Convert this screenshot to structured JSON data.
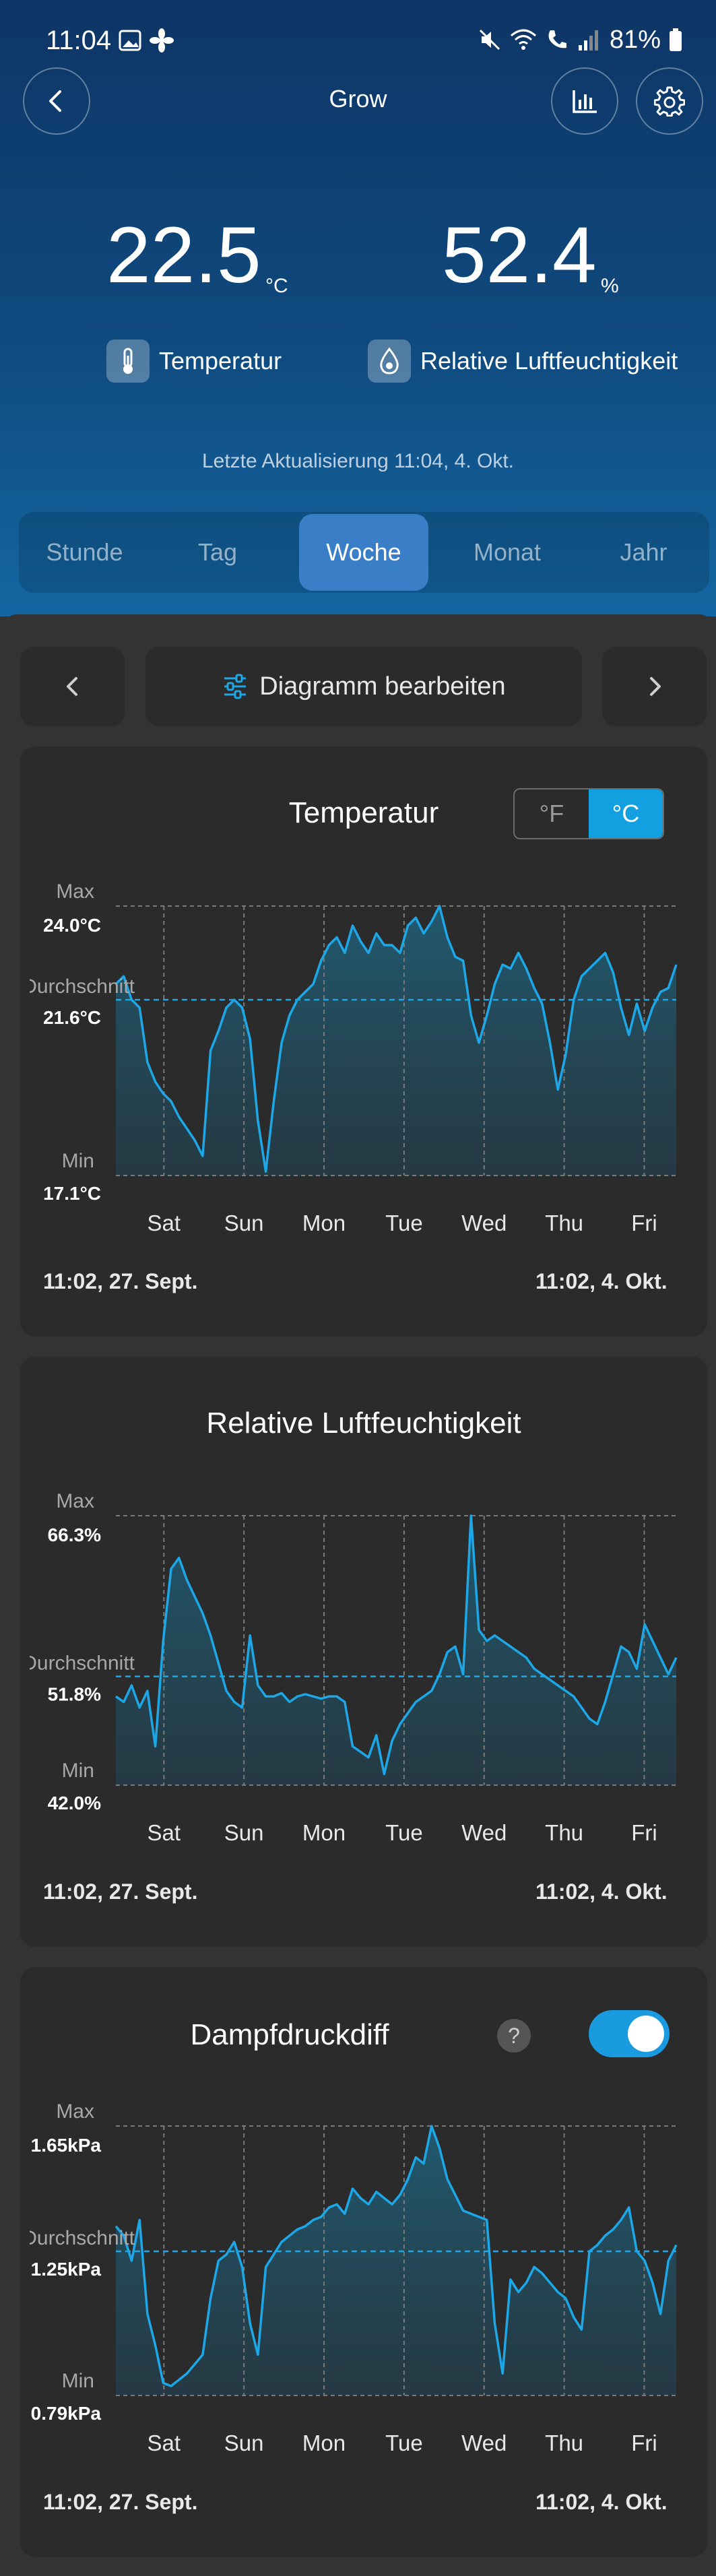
{
  "status": {
    "time": "11:04",
    "battery": "81%"
  },
  "header": {
    "title": "Grow"
  },
  "readings": {
    "temperature": {
      "value": "22.5",
      "unit": "°C",
      "label": "Temperatur"
    },
    "humidity": {
      "value": "52.4",
      "unit": "%",
      "label": "Relative Luftfeuchtigkeit"
    }
  },
  "last_update": "Letzte Aktualisierung 11:04,  4. Okt.",
  "tabs": [
    {
      "label": "Stunde",
      "active": false
    },
    {
      "label": "Tag",
      "active": false
    },
    {
      "label": "Woche",
      "active": true
    },
    {
      "label": "Monat",
      "active": false
    },
    {
      "label": "Jahr",
      "active": false
    }
  ],
  "toolbar": {
    "edit_label": "Diagramm bearbeiten"
  },
  "colors": {
    "accent": "#13a0e0",
    "header_top": "#0e3566",
    "card": "#2b2b2b",
    "line": "#1ea7e6"
  },
  "chart_data": [
    {
      "type": "line",
      "title": "Temperatur",
      "unit_toggle": {
        "fahrenheit": "°F",
        "celsius": "°C",
        "selected": "°C"
      },
      "stat_labels": {
        "max": "Max",
        "avg": "Durchschnitt",
        "min": "Min"
      },
      "max_label": "24.0°C",
      "avg_label": "21.6°C",
      "min_label": "17.1°C",
      "ylim": [
        17.1,
        24.0
      ],
      "average": 21.6,
      "x_ticks": [
        "Sat",
        "Sun",
        "Mon",
        "Tue",
        "Wed",
        "Thu",
        "Fri"
      ],
      "start_label": "11:02,  27. Sept.",
      "end_label": "11:02,  4. Okt.",
      "series": [
        {
          "values": [
            22.0,
            22.2,
            21.6,
            21.4,
            20.0,
            19.5,
            19.2,
            19.0,
            18.6,
            18.3,
            18.0,
            17.6,
            20.3,
            20.8,
            21.4,
            21.6,
            21.4,
            20.6,
            18.5,
            17.2,
            19.0,
            20.5,
            21.2,
            21.6,
            21.8,
            22.0,
            22.6,
            23.0,
            23.2,
            22.8,
            23.5,
            23.1,
            22.8,
            23.3,
            23.0,
            23.0,
            22.8,
            23.5,
            23.7,
            23.3,
            23.6,
            24.0,
            23.2,
            22.7,
            22.6,
            21.2,
            20.5,
            21.2,
            22.0,
            22.5,
            22.4,
            22.8,
            22.4,
            21.9,
            21.5,
            20.5,
            19.3,
            20.2,
            21.6,
            22.2,
            22.4,
            22.6,
            22.8,
            22.3,
            21.4,
            20.7,
            21.5,
            20.8,
            21.4,
            21.8,
            21.9,
            22.5
          ]
        }
      ]
    },
    {
      "type": "line",
      "title": "Relative Luftfeuchtigkeit",
      "stat_labels": {
        "max": "Max",
        "avg": "Durchschnitt",
        "min": "Min"
      },
      "max_label": "66.3%",
      "avg_label": "51.8%",
      "min_label": "42.0%",
      "ylim": [
        42.0,
        66.3
      ],
      "average": 51.8,
      "x_ticks": [
        "Sat",
        "Sun",
        "Mon",
        "Tue",
        "Wed",
        "Thu",
        "Fri"
      ],
      "start_label": "11:02,  27. Sept.",
      "end_label": "11:02,  4. Okt.",
      "series": [
        {
          "values": [
            50.0,
            49.5,
            51.0,
            49.0,
            50.5,
            45.5,
            55.0,
            61.5,
            62.5,
            60.5,
            59.0,
            57.5,
            55.5,
            53.0,
            50.5,
            49.5,
            49.0,
            55.5,
            51.0,
            50.0,
            50.0,
            50.3,
            49.5,
            50.0,
            50.2,
            50.0,
            49.8,
            50.0,
            50.0,
            49.5,
            45.5,
            45.0,
            44.5,
            46.5,
            43.0,
            46.0,
            47.5,
            48.5,
            49.5,
            50.0,
            50.5,
            52.0,
            54.0,
            54.5,
            52.0,
            66.3,
            56.0,
            55.0,
            55.5,
            55.0,
            54.5,
            54.0,
            53.5,
            52.5,
            52.0,
            51.5,
            51.0,
            50.5,
            50.0,
            49.0,
            48.0,
            47.5,
            49.5,
            52.0,
            54.5,
            54.0,
            52.5,
            56.5,
            55.0,
            53.5,
            52.0,
            53.5
          ]
        }
      ]
    },
    {
      "type": "line",
      "title": "Dampfdruckdiff",
      "help_icon": "?",
      "toggle_on": true,
      "stat_labels": {
        "max": "Max",
        "avg": "Durchschnitt",
        "min": "Min"
      },
      "max_label": "1.65kPa",
      "avg_label": "1.25kPa",
      "min_label": "0.79kPa",
      "ylim": [
        0.79,
        1.65
      ],
      "average": 1.25,
      "x_ticks": [
        "Sat",
        "Sun",
        "Mon",
        "Tue",
        "Wed",
        "Thu",
        "Fri"
      ],
      "start_label": "11:02,  27. Sept.",
      "end_label": "11:02,  4. Okt.",
      "series": [
        {
          "values": [
            1.33,
            1.3,
            1.22,
            1.35,
            1.05,
            0.95,
            0.83,
            0.82,
            0.84,
            0.86,
            0.89,
            0.92,
            1.1,
            1.22,
            1.24,
            1.28,
            1.2,
            1.02,
            0.92,
            1.2,
            1.24,
            1.28,
            1.3,
            1.32,
            1.33,
            1.35,
            1.36,
            1.39,
            1.4,
            1.37,
            1.45,
            1.42,
            1.4,
            1.44,
            1.42,
            1.4,
            1.43,
            1.48,
            1.55,
            1.53,
            1.65,
            1.58,
            1.48,
            1.43,
            1.38,
            1.37,
            1.36,
            1.35,
            1.02,
            0.86,
            1.16,
            1.12,
            1.15,
            1.2,
            1.18,
            1.15,
            1.12,
            1.1,
            1.04,
            1.0,
            1.25,
            1.27,
            1.3,
            1.32,
            1.35,
            1.39,
            1.25,
            1.22,
            1.15,
            1.05,
            1.22,
            1.27
          ]
        }
      ]
    }
  ]
}
